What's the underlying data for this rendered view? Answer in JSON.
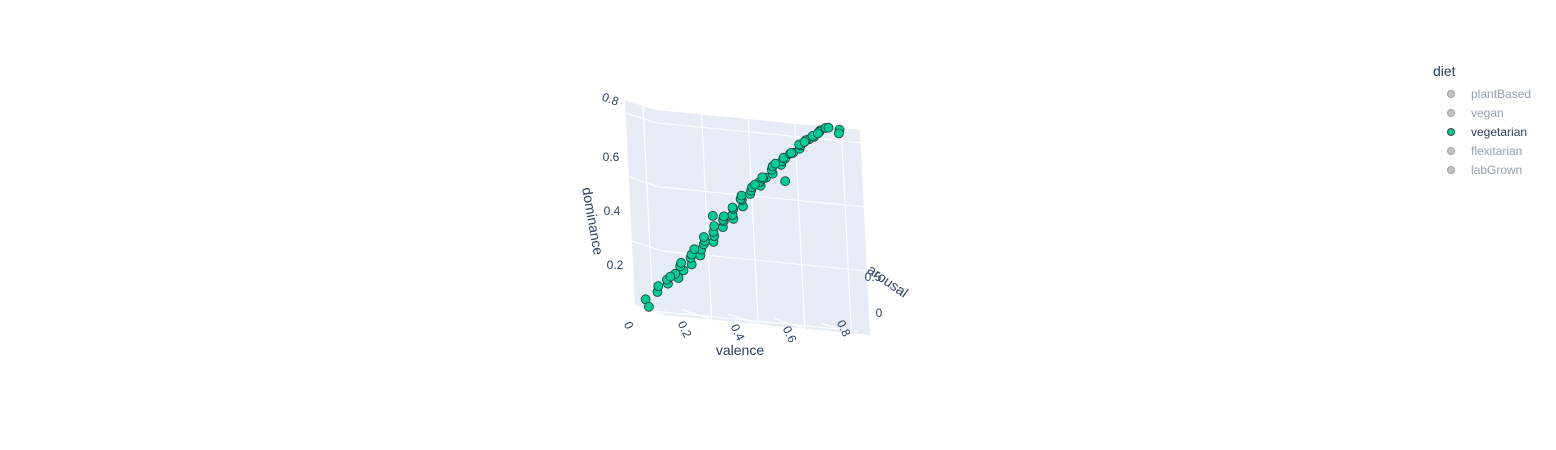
{
  "chart_data": {
    "type": "scatter3d",
    "title": "",
    "axes": {
      "x": {
        "label": "valence",
        "ticks": [
          "0",
          "0.2",
          "0.4",
          "0.6",
          "0.8"
        ],
        "range": [
          0,
          0.85
        ]
      },
      "y": {
        "label": "arousal",
        "ticks": [
          "0",
          "0.5"
        ],
        "range": [
          0,
          0.8
        ]
      },
      "z": {
        "label": "dominance",
        "ticks": [
          "0.2",
          "0.4",
          "0.6",
          "0.8"
        ],
        "range": [
          0.05,
          0.85
        ]
      }
    },
    "legend": {
      "title": "diet",
      "placement": "top-right",
      "items": [
        {
          "name": "plantBased",
          "visible": false,
          "color": "#636efa"
        },
        {
          "name": "vegan",
          "visible": false,
          "color": "#EF553B"
        },
        {
          "name": "vegetarian",
          "visible": true,
          "color": "#00cc96"
        },
        {
          "name": "flexitarian",
          "visible": false,
          "color": "#ab63fa"
        },
        {
          "name": "labGrown",
          "visible": false,
          "color": "#FFA15A"
        }
      ]
    },
    "series": [
      {
        "name": "vegetarian",
        "color": "#00cc96",
        "points": [
          [
            0.03,
            0.1,
            0.08
          ],
          [
            0.05,
            0.3,
            0.12
          ],
          [
            0.07,
            0.2,
            0.14
          ],
          [
            0.08,
            0.4,
            0.16
          ],
          [
            0.1,
            0.25,
            0.17
          ],
          [
            0.11,
            0.5,
            0.19
          ],
          [
            0.12,
            0.35,
            0.2
          ],
          [
            0.13,
            0.15,
            0.18
          ],
          [
            0.14,
            0.45,
            0.22
          ],
          [
            0.15,
            0.3,
            0.23
          ],
          [
            0.16,
            0.55,
            0.25
          ],
          [
            0.17,
            0.2,
            0.24
          ],
          [
            0.18,
            0.4,
            0.27
          ],
          [
            0.19,
            0.6,
            0.29
          ],
          [
            0.2,
            0.3,
            0.28
          ],
          [
            0.21,
            0.5,
            0.31
          ],
          [
            0.22,
            0.25,
            0.3
          ],
          [
            0.23,
            0.45,
            0.33
          ],
          [
            0.24,
            0.65,
            0.35
          ],
          [
            0.25,
            0.35,
            0.34
          ],
          [
            0.26,
            0.55,
            0.37
          ],
          [
            0.27,
            0.2,
            0.35
          ],
          [
            0.28,
            0.4,
            0.38
          ],
          [
            0.29,
            0.6,
            0.41
          ],
          [
            0.3,
            0.3,
            0.4
          ],
          [
            0.31,
            0.5,
            0.43
          ],
          [
            0.32,
            0.7,
            0.45
          ],
          [
            0.33,
            0.35,
            0.43
          ],
          [
            0.34,
            0.55,
            0.46
          ],
          [
            0.35,
            0.25,
            0.44
          ],
          [
            0.36,
            0.45,
            0.48
          ],
          [
            0.37,
            0.65,
            0.5
          ],
          [
            0.38,
            0.3,
            0.48
          ],
          [
            0.39,
            0.5,
            0.52
          ],
          [
            0.4,
            0.4,
            0.52
          ],
          [
            0.41,
            0.6,
            0.55
          ],
          [
            0.42,
            0.3,
            0.53
          ],
          [
            0.43,
            0.5,
            0.56
          ],
          [
            0.44,
            0.7,
            0.59
          ],
          [
            0.45,
            0.4,
            0.57
          ],
          [
            0.46,
            0.55,
            0.6
          ],
          [
            0.47,
            0.35,
            0.58
          ],
          [
            0.48,
            0.6,
            0.62
          ],
          [
            0.49,
            0.45,
            0.61
          ],
          [
            0.5,
            0.65,
            0.64
          ],
          [
            0.51,
            0.3,
            0.61
          ],
          [
            0.52,
            0.5,
            0.65
          ],
          [
            0.53,
            0.7,
            0.68
          ],
          [
            0.54,
            0.4,
            0.66
          ],
          [
            0.55,
            0.6,
            0.69
          ],
          [
            0.56,
            0.35,
            0.67
          ],
          [
            0.57,
            0.55,
            0.7
          ],
          [
            0.58,
            0.45,
            0.7
          ],
          [
            0.59,
            0.65,
            0.73
          ],
          [
            0.6,
            0.5,
            0.72
          ],
          [
            0.61,
            0.7,
            0.75
          ],
          [
            0.62,
            0.4,
            0.72
          ],
          [
            0.63,
            0.6,
            0.76
          ],
          [
            0.64,
            0.5,
            0.76
          ],
          [
            0.65,
            0.7,
            0.79
          ],
          [
            0.66,
            0.55,
            0.78
          ],
          [
            0.67,
            0.45,
            0.77
          ],
          [
            0.68,
            0.65,
            0.8
          ],
          [
            0.69,
            0.55,
            0.8
          ],
          [
            0.7,
            0.7,
            0.83
          ],
          [
            0.71,
            0.6,
            0.82
          ],
          [
            0.72,
            0.5,
            0.81
          ],
          [
            0.73,
            0.65,
            0.84
          ],
          [
            0.75,
            0.6,
            0.84
          ],
          [
            0.78,
            0.7,
            0.84
          ],
          [
            0.8,
            0.55,
            0.82
          ],
          [
            0.62,
            0.2,
            0.6
          ],
          [
            0.25,
            0.6,
            0.45
          ],
          [
            0.05,
            0.05,
            0.05
          ]
        ]
      }
    ]
  }
}
